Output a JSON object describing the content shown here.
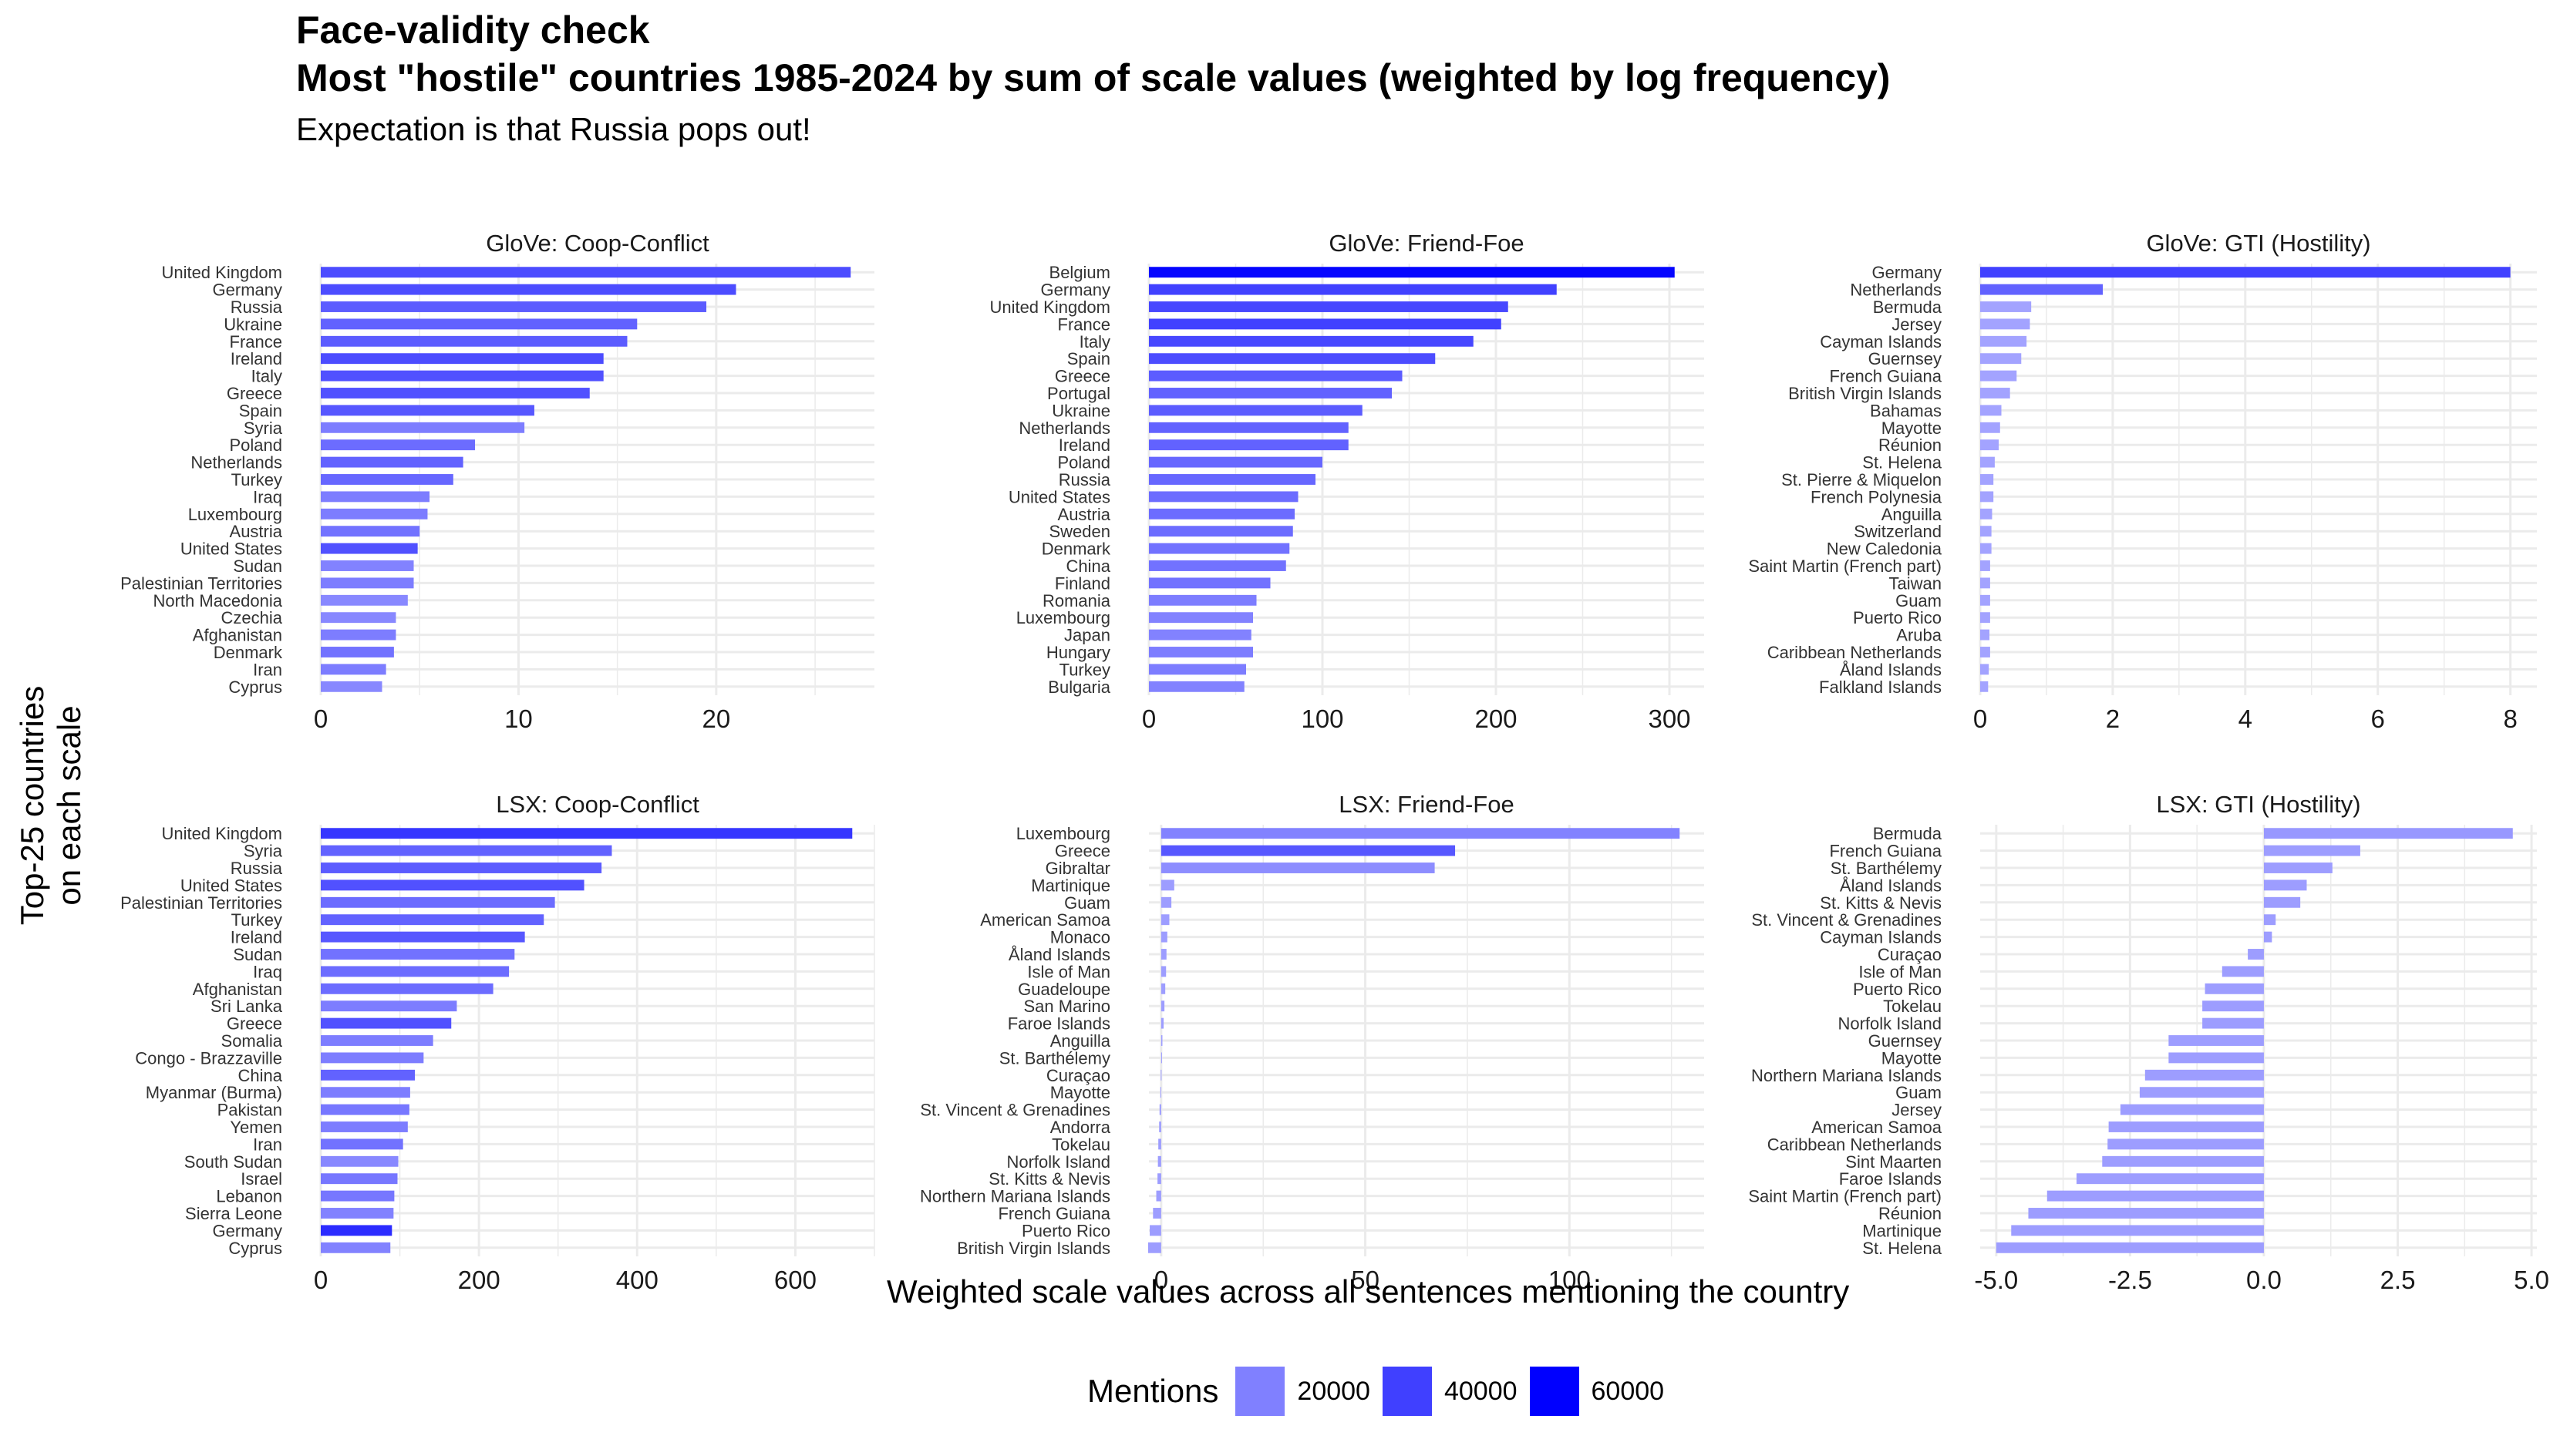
{
  "title_line1": "Face-validity check",
  "title_line2": "Most \"hostile\" countries 1985-2024 by sum of scale values (weighted by log frequency)",
  "subtitle": "Expectation is that Russia pops out!",
  "ylabel": "Top-25 countries\non each scale",
  "xlabel": "Weighted scale values across all sentences mentioning the country",
  "legend": {
    "title": "Mentions",
    "items": [
      {
        "label": "20000",
        "color": "#8080ff"
      },
      {
        "label": "40000",
        "color": "#4040ff"
      },
      {
        "label": "60000",
        "color": "#0000ff"
      }
    ]
  },
  "colors": {
    "background": "#ffffff",
    "grid": "#ebebeb",
    "bar_low": "#b3b3ff",
    "bar_high": "#0000ff"
  },
  "chart_data": [
    {
      "type": "bar",
      "orientation": "horizontal",
      "title": "GloVe: Coop-Conflict",
      "xlim": [
        0,
        28
      ],
      "ticks": [
        0,
        10,
        20
      ],
      "tick_labels": [
        "0",
        "10",
        "20"
      ],
      "categories": [
        "United Kingdom",
        "Germany",
        "Russia",
        "Ukraine",
        "France",
        "Ireland",
        "Italy",
        "Greece",
        "Spain",
        "Syria",
        "Poland",
        "Netherlands",
        "Turkey",
        "Iraq",
        "Luxembourg",
        "Austria",
        "United States",
        "Sudan",
        "Palestinian Territories",
        "North Macedonia",
        "Czechia",
        "Afghanistan",
        "Denmark",
        "Iran",
        "Cyprus"
      ],
      "values": [
        26.8,
        21.0,
        19.5,
        16.0,
        15.5,
        14.3,
        14.3,
        13.6,
        10.8,
        10.3,
        7.8,
        7.2,
        6.7,
        5.5,
        5.4,
        5.0,
        4.9,
        4.7,
        4.7,
        4.4,
        3.8,
        3.8,
        3.7,
        3.3,
        3.1
      ],
      "mentions": [
        38000,
        38000,
        32000,
        30000,
        32000,
        38000,
        36000,
        36000,
        34000,
        20000,
        26000,
        30000,
        28000,
        20000,
        20000,
        24000,
        36000,
        18000,
        20000,
        16000,
        16000,
        20000,
        24000,
        20000,
        16000
      ]
    },
    {
      "type": "bar",
      "orientation": "horizontal",
      "title": "GloVe: Friend-Foe",
      "xlim": [
        0,
        320
      ],
      "ticks": [
        0,
        100,
        200,
        300
      ],
      "tick_labels": [
        "0",
        "100",
        "200",
        "300"
      ],
      "categories": [
        "Belgium",
        "Germany",
        "United Kingdom",
        "France",
        "Italy",
        "Spain",
        "Greece",
        "Portugal",
        "Ukraine",
        "Netherlands",
        "Ireland",
        "Poland",
        "Russia",
        "United States",
        "Austria",
        "Sweden",
        "Denmark",
        "China",
        "Finland",
        "Romania",
        "Luxembourg",
        "Japan",
        "Hungary",
        "Turkey",
        "Bulgaria"
      ],
      "values": [
        303,
        235,
        207,
        203,
        187,
        165,
        146,
        140,
        123,
        115,
        115,
        100,
        96,
        86,
        84,
        83,
        81,
        79,
        70,
        62,
        60,
        59,
        60,
        56,
        55
      ],
      "mentions": [
        64000,
        42000,
        40000,
        42000,
        40000,
        38000,
        32000,
        30000,
        32000,
        30000,
        30000,
        28000,
        28000,
        26000,
        26000,
        26000,
        24000,
        24000,
        24000,
        20000,
        18000,
        18000,
        20000,
        20000,
        18000
      ]
    },
    {
      "type": "bar",
      "orientation": "horizontal",
      "title": "GloVe: GTI (Hostility)",
      "xlim": [
        0,
        8.4
      ],
      "ticks": [
        0,
        2,
        4,
        6,
        8
      ],
      "tick_labels": [
        "0",
        "2",
        "4",
        "6",
        "8"
      ],
      "categories": [
        "Germany",
        "Netherlands",
        "Bermuda",
        "Jersey",
        "Cayman Islands",
        "Guernsey",
        "French Guiana",
        "British Virgin Islands",
        "Bahamas",
        "Mayotte",
        "Réunion",
        "St. Helena",
        "St. Pierre & Miquelon",
        "French Polynesia",
        "Anguilla",
        "Switzerland",
        "New Caledonia",
        "Saint Martin (French part)",
        "Taiwan",
        "Guam",
        "Puerto Rico",
        "Aruba",
        "Caribbean Netherlands",
        "Åland Islands",
        "Falkland Islands"
      ],
      "values": [
        8.0,
        1.85,
        0.77,
        0.75,
        0.7,
        0.62,
        0.55,
        0.45,
        0.32,
        0.3,
        0.28,
        0.22,
        0.2,
        0.2,
        0.18,
        0.17,
        0.17,
        0.15,
        0.15,
        0.15,
        0.15,
        0.14,
        0.15,
        0.13,
        0.12
      ],
      "mentions": [
        42000,
        30000,
        6000,
        6000,
        6000,
        6000,
        6000,
        6000,
        6000,
        6000,
        6000,
        6000,
        6000,
        6000,
        6000,
        6000,
        6000,
        6000,
        6000,
        6000,
        6000,
        6000,
        6000,
        6000,
        6000
      ]
    },
    {
      "type": "bar",
      "orientation": "horizontal",
      "title": "LSX: Coop-Conflict",
      "xlim": [
        0,
        700
      ],
      "ticks": [
        0,
        200,
        400,
        600
      ],
      "tick_labels": [
        "0",
        "200",
        "400",
        "600"
      ],
      "categories": [
        "United Kingdom",
        "Syria",
        "Russia",
        "United States",
        "Palestinian Territories",
        "Turkey",
        "Ireland",
        "Sudan",
        "Iraq",
        "Afghanistan",
        "Sri Lanka",
        "Greece",
        "Somalia",
        "Congo - Brazzaville",
        "China",
        "Myanmar (Burma)",
        "Pakistan",
        "Yemen",
        "Iran",
        "South Sudan",
        "Israel",
        "Lebanon",
        "Sierra Leone",
        "Germany",
        "Cyprus"
      ],
      "values": [
        672,
        368,
        355,
        333,
        296,
        282,
        258,
        245,
        238,
        218,
        172,
        165,
        142,
        130,
        119,
        113,
        112,
        110,
        104,
        98,
        97,
        93,
        92,
        90,
        88
      ],
      "mentions": [
        46000,
        30000,
        32000,
        36000,
        26000,
        30000,
        34000,
        24000,
        26000,
        26000,
        20000,
        36000,
        20000,
        20000,
        30000,
        20000,
        22000,
        20000,
        24000,
        16000,
        22000,
        22000,
        18000,
        50000,
        18000
      ]
    },
    {
      "type": "bar",
      "orientation": "horizontal",
      "title": "LSX: Friend-Foe",
      "xlim": [
        -3,
        133
      ],
      "ticks": [
        0,
        50,
        100
      ],
      "tick_labels": [
        "0",
        "50",
        "100"
      ],
      "categories": [
        "Luxembourg",
        "Greece",
        "Gibraltar",
        "Martinique",
        "Guam",
        "American Samoa",
        "Monaco",
        "Åland Islands",
        "Isle of Man",
        "Guadeloupe",
        "San Marino",
        "Faroe Islands",
        "Anguilla",
        "St. Barthélemy",
        "Curaçao",
        "Mayotte",
        "St. Vincent & Grenadines",
        "Andorra",
        "Tokelau",
        "Norfolk Island",
        "St. Kitts & Nevis",
        "Northern Mariana Islands",
        "French Guiana",
        "Puerto Rico",
        "British Virgin Islands"
      ],
      "values": [
        127,
        72,
        67,
        3.2,
        2.5,
        2.0,
        1.5,
        1.3,
        1.2,
        1.0,
        0.8,
        0.6,
        0.3,
        0.2,
        -0.1,
        -0.2,
        -0.4,
        -0.5,
        -0.7,
        -0.8,
        -0.9,
        -1.2,
        -2.0,
        -2.8,
        -3.2
      ],
      "mentions": [
        18000,
        34000,
        14000,
        8000,
        8000,
        8000,
        8000,
        8000,
        8000,
        8000,
        8000,
        8000,
        8000,
        8000,
        8000,
        8000,
        8000,
        8000,
        8000,
        8000,
        8000,
        8000,
        8000,
        8000,
        8000
      ]
    },
    {
      "type": "bar",
      "orientation": "horizontal",
      "title": "LSX: GTI (Hostility)",
      "xlim": [
        -5.3,
        5.1
      ],
      "ticks": [
        -5,
        -2.5,
        0,
        2.5,
        5
      ],
      "tick_labels": [
        "-5.0",
        "-2.5",
        "0.0",
        "2.5",
        "5.0"
      ],
      "categories": [
        "Bermuda",
        "French Guiana",
        "St. Barthélemy",
        "Åland Islands",
        "St. Kitts & Nevis",
        "St. Vincent & Grenadines",
        "Cayman Islands",
        "Curaçao",
        "Isle of Man",
        "Puerto Rico",
        "Tokelau",
        "Norfolk Island",
        "Guernsey",
        "Mayotte",
        "Northern Mariana Islands",
        "Guam",
        "Jersey",
        "American Samoa",
        "Caribbean Netherlands",
        "Sint Maarten",
        "Faroe Islands",
        "Saint Martin (French part)",
        "Réunion",
        "Martinique",
        "St. Helena"
      ],
      "values": [
        4.65,
        1.8,
        1.28,
        0.8,
        0.68,
        0.22,
        0.15,
        -0.3,
        -0.78,
        -1.1,
        -1.15,
        -1.15,
        -1.78,
        -1.78,
        -2.22,
        -2.32,
        -2.68,
        -2.9,
        -2.92,
        -3.02,
        -3.5,
        -4.05,
        -4.4,
        -4.72,
        -5.0
      ],
      "mentions": [
        10000,
        8000,
        8000,
        8000,
        8000,
        8000,
        8000,
        8000,
        8000,
        8000,
        8000,
        8000,
        8000,
        8000,
        8000,
        8000,
        8000,
        8000,
        8000,
        8000,
        8000,
        8000,
        8000,
        8000,
        8000
      ]
    }
  ]
}
